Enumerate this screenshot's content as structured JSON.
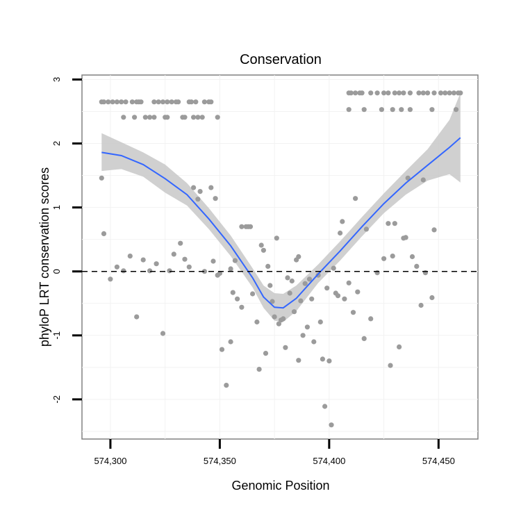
{
  "chart_data": {
    "type": "scatter",
    "title": "Conservation",
    "xlabel": "Genomic Position",
    "ylabel": "phyloP LRT conservation scores",
    "xlim": [
      574287,
      574468
    ],
    "ylim": [
      -2.62,
      3.07
    ],
    "xticks": [
      574300,
      574350,
      574400,
      574450
    ],
    "xtick_labels": [
      "574,300",
      "574,350",
      "574,400",
      "574,450"
    ],
    "yticks": [
      -2,
      -1,
      0,
      1,
      2,
      3
    ],
    "ytick_labels": [
      "-2",
      "-1",
      "0",
      "1",
      "2",
      "3"
    ],
    "grid": true,
    "reference_line": {
      "y": 0,
      "style": "dashed"
    },
    "points": [
      [
        574296,
        2.65
      ],
      [
        574297,
        2.65
      ],
      [
        574299,
        2.65
      ],
      [
        574301,
        2.65
      ],
      [
        574303,
        2.65
      ],
      [
        574305,
        2.65
      ],
      [
        574307,
        2.65
      ],
      [
        574310,
        2.65
      ],
      [
        574312,
        2.65
      ],
      [
        574313,
        2.65
      ],
      [
        574314,
        2.65
      ],
      [
        574320,
        2.65
      ],
      [
        574322,
        2.65
      ],
      [
        574324,
        2.65
      ],
      [
        574326,
        2.65
      ],
      [
        574328,
        2.65
      ],
      [
        574330,
        2.65
      ],
      [
        574331,
        2.65
      ],
      [
        574336,
        2.65
      ],
      [
        574337,
        2.65
      ],
      [
        574339,
        2.65
      ],
      [
        574343,
        2.65
      ],
      [
        574345,
        2.65
      ],
      [
        574346,
        2.65
      ],
      [
        574306,
        2.41
      ],
      [
        574311,
        2.41
      ],
      [
        574316,
        2.41
      ],
      [
        574318,
        2.41
      ],
      [
        574320,
        2.41
      ],
      [
        574325,
        2.41
      ],
      [
        574326,
        2.41
      ],
      [
        574333,
        2.41
      ],
      [
        574334,
        2.41
      ],
      [
        574338,
        2.41
      ],
      [
        574340,
        2.41
      ],
      [
        574342,
        2.41
      ],
      [
        574349,
        2.41
      ],
      [
        574409,
        2.79
      ],
      [
        574410,
        2.79
      ],
      [
        574412,
        2.79
      ],
      [
        574414,
        2.79
      ],
      [
        574415,
        2.79
      ],
      [
        574419,
        2.79
      ],
      [
        574422,
        2.79
      ],
      [
        574425,
        2.79
      ],
      [
        574427,
        2.79
      ],
      [
        574430,
        2.79
      ],
      [
        574432,
        2.79
      ],
      [
        574434,
        2.79
      ],
      [
        574437,
        2.79
      ],
      [
        574441,
        2.79
      ],
      [
        574443,
        2.79
      ],
      [
        574445,
        2.79
      ],
      [
        574448,
        2.79
      ],
      [
        574451,
        2.79
      ],
      [
        574453,
        2.79
      ],
      [
        574455,
        2.79
      ],
      [
        574457,
        2.79
      ],
      [
        574459,
        2.79
      ],
      [
        574460,
        2.79
      ],
      [
        574409,
        2.53
      ],
      [
        574416,
        2.53
      ],
      [
        574424,
        2.53
      ],
      [
        574429,
        2.53
      ],
      [
        574433,
        2.53
      ],
      [
        574437,
        2.53
      ],
      [
        574447,
        2.53
      ],
      [
        574458,
        2.53
      ],
      [
        574296,
        1.46
      ],
      [
        574297,
        0.59
      ],
      [
        574300,
        -0.12
      ],
      [
        574303,
        0.07
      ],
      [
        574306,
        0.01
      ],
      [
        574309,
        0.24
      ],
      [
        574312,
        -0.71
      ],
      [
        574315,
        0.18
      ],
      [
        574318,
        0.01
      ],
      [
        574321,
        0.12
      ],
      [
        574324,
        -0.97
      ],
      [
        574327,
        0.01
      ],
      [
        574329,
        0.27
      ],
      [
        574332,
        0.44
      ],
      [
        574334,
        0.19
      ],
      [
        574336,
        0.07
      ],
      [
        574338,
        1.31
      ],
      [
        574340,
        1.13
      ],
      [
        574341,
        1.25
      ],
      [
        574343,
        0.0
      ],
      [
        574346,
        1.31
      ],
      [
        574347,
        0.16
      ],
      [
        574348,
        1.14
      ],
      [
        574349,
        -0.06
      ],
      [
        574350,
        -0.03
      ],
      [
        574351,
        -1.22
      ],
      [
        574353,
        -1.78
      ],
      [
        574355,
        -1.1
      ],
      [
        574355,
        0.04
      ],
      [
        574356,
        -0.33
      ],
      [
        574357,
        0.17
      ],
      [
        574358,
        -0.43
      ],
      [
        574360,
        0.7
      ],
      [
        574360,
        -0.56
      ],
      [
        574362,
        0.7
      ],
      [
        574363,
        0.7
      ],
      [
        574364,
        0.7
      ],
      [
        574365,
        -0.35
      ],
      [
        574367,
        -0.79
      ],
      [
        574368,
        -1.53
      ],
      [
        574369,
        0.41
      ],
      [
        574370,
        0.33
      ],
      [
        574371,
        -1.28
      ],
      [
        574372,
        0.08
      ],
      [
        574373,
        -0.22
      ],
      [
        574374,
        -0.47
      ],
      [
        574375,
        -0.71
      ],
      [
        574376,
        0.52
      ],
      [
        574377,
        -0.82
      ],
      [
        574378,
        -0.76
      ],
      [
        574379,
        -0.74
      ],
      [
        574380,
        -1.19
      ],
      [
        574381,
        -0.1
      ],
      [
        574382,
        -0.34
      ],
      [
        574383,
        -0.15
      ],
      [
        574384,
        -0.63
      ],
      [
        574385,
        0.18
      ],
      [
        574386,
        -1.39
      ],
      [
        574386,
        0.23
      ],
      [
        574387,
        -0.46
      ],
      [
        574388,
        -1.0
      ],
      [
        574389,
        -0.19
      ],
      [
        574390,
        -0.87
      ],
      [
        574391,
        -0.12
      ],
      [
        574392,
        -0.43
      ],
      [
        574393,
        -1.1
      ],
      [
        574395,
        -0.06
      ],
      [
        574396,
        -0.79
      ],
      [
        574397,
        -1.37
      ],
      [
        574398,
        -2.11
      ],
      [
        574399,
        -0.26
      ],
      [
        574400,
        -1.4
      ],
      [
        574401,
        -2.4
      ],
      [
        574402,
        0.05
      ],
      [
        574403,
        -0.34
      ],
      [
        574404,
        -0.38
      ],
      [
        574405,
        0.6
      ],
      [
        574406,
        0.78
      ],
      [
        574407,
        -0.43
      ],
      [
        574409,
        -0.18
      ],
      [
        574411,
        -0.64
      ],
      [
        574412,
        1.14
      ],
      [
        574413,
        -0.32
      ],
      [
        574416,
        -1.05
      ],
      [
        574417,
        0.66
      ],
      [
        574419,
        -0.74
      ],
      [
        574422,
        -0.02
      ],
      [
        574425,
        0.2
      ],
      [
        574427,
        0.75
      ],
      [
        574428,
        -1.47
      ],
      [
        574429,
        0.24
      ],
      [
        574430,
        0.75
      ],
      [
        574432,
        -1.18
      ],
      [
        574434,
        0.52
      ],
      [
        574435,
        0.53
      ],
      [
        574436,
        1.46
      ],
      [
        574438,
        0.23
      ],
      [
        574440,
        0.08
      ],
      [
        574442,
        -0.53
      ],
      [
        574443,
        1.43
      ],
      [
        574444,
        -0.02
      ],
      [
        574447,
        -0.41
      ],
      [
        574448,
        0.65
      ]
    ],
    "smooth": {
      "method": "loess",
      "x": [
        574296,
        574305,
        574315,
        574325,
        574335,
        574345,
        574355,
        574365,
        574370,
        574375,
        574379,
        574385,
        574395,
        574405,
        574415,
        574425,
        574435,
        574445,
        574455,
        574460
      ],
      "y": [
        1.86,
        1.81,
        1.67,
        1.45,
        1.2,
        0.82,
        0.4,
        -0.1,
        -0.4,
        -0.56,
        -0.57,
        -0.42,
        -0.04,
        0.32,
        0.7,
        1.06,
        1.38,
        1.66,
        1.94,
        2.09
      ],
      "lower": [
        1.57,
        1.6,
        1.48,
        1.23,
        1.03,
        0.66,
        0.24,
        -0.25,
        -0.57,
        -0.77,
        -0.79,
        -0.62,
        -0.18,
        0.17,
        0.55,
        0.91,
        1.2,
        1.42,
        1.52,
        1.39
      ],
      "upper": [
        2.16,
        2.02,
        1.86,
        1.67,
        1.38,
        0.99,
        0.56,
        0.05,
        -0.22,
        -0.34,
        -0.35,
        -0.22,
        0.11,
        0.47,
        0.85,
        1.22,
        1.57,
        1.91,
        2.37,
        2.79
      ]
    }
  }
}
